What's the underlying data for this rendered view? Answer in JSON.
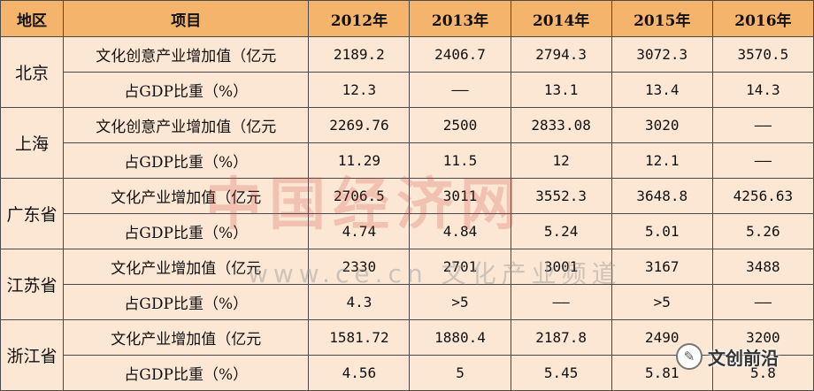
{
  "table": {
    "headers": [
      "地区",
      "项目",
      "2012年",
      "2013年",
      "2014年",
      "2015年",
      "2016年"
    ],
    "rows": [
      {
        "region": "北京",
        "items": [
          {
            "label": "文化创意产业增加值（亿元",
            "values": [
              "2189.2",
              "2406.7",
              "2794.3",
              "3072.3",
              "3570.5"
            ]
          },
          {
            "label": "占GDP比重（%）",
            "values": [
              "12.3",
              "——",
              "13.1",
              "13.4",
              "14.3"
            ]
          }
        ]
      },
      {
        "region": "上海",
        "items": [
          {
            "label": "文化创意产业增加值（亿元",
            "values": [
              "2269.76",
              "2500",
              "2833.08",
              "3020",
              "——"
            ]
          },
          {
            "label": "占GDP比重（%）",
            "values": [
              "11.29",
              "11.5",
              "12",
              "12.1",
              "——"
            ]
          }
        ]
      },
      {
        "region": "广东省",
        "items": [
          {
            "label": "文化产业增加值（亿元",
            "values": [
              "2706.5",
              "3011",
              "3552.3",
              "3648.8",
              "4256.63"
            ]
          },
          {
            "label": "占GDP比重（%）",
            "values": [
              "4.74",
              "4.84",
              "5.24",
              "5.01",
              "5.26"
            ]
          }
        ]
      },
      {
        "region": "江苏省",
        "items": [
          {
            "label": "文化产业增加值（亿元",
            "values": [
              "2330",
              "2701",
              "3001",
              "3167",
              "3488"
            ]
          },
          {
            "label": "占GDP比重（%）",
            "values": [
              "4.3",
              ">5",
              "——",
              ">5",
              "——"
            ]
          }
        ]
      },
      {
        "region": "浙江省",
        "items": [
          {
            "label": "文化产业增加值（亿元",
            "values": [
              "1581.72",
              "1880.4",
              "2187.8",
              "2490",
              "3200"
            ]
          },
          {
            "label": "占GDP比重（%）",
            "values": [
              "4.56",
              "5",
              "5.45",
              "5.81",
              "5.8"
            ]
          }
        ]
      }
    ]
  },
  "watermark": {
    "main": "中国经济网",
    "sub": "www.ce.cn 文化产业频道"
  },
  "badge": {
    "text": "文创前沿"
  }
}
